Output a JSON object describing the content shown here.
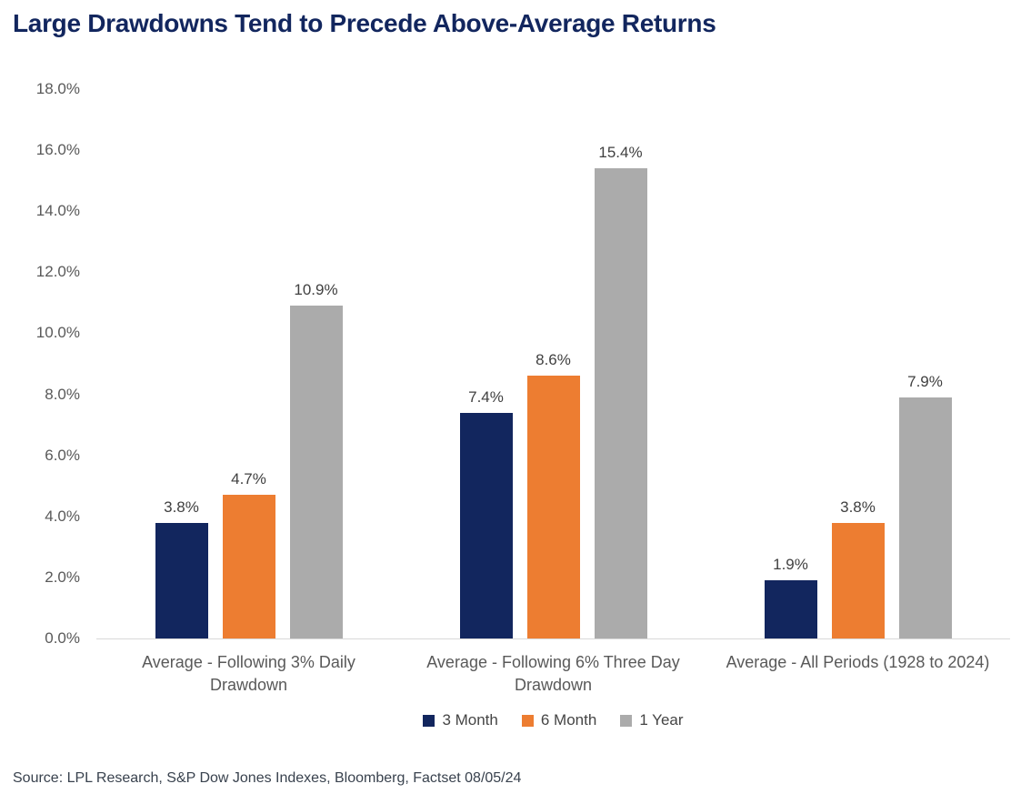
{
  "title": "Large Drawdowns Tend to Precede Above-Average Returns",
  "source": "Source: LPL Research, S&P Dow Jones Indexes, Bloomberg, Factset 08/05/24",
  "colors": {
    "title_text": "#12265E",
    "axis_text": "#595959",
    "data_label": "#404040",
    "legend_text": "#454545",
    "source_text": "#39424E",
    "baseline_line": "#D9D9D9"
  },
  "chart_data": {
    "type": "bar",
    "title": "Large Drawdowns Tend to Precede Above-Average Returns",
    "categories": [
      "Average - Following 3% Daily Drawdown",
      "Average - Following 6% Three Day Drawdown",
      "Average - All Periods (1928 to 2024)"
    ],
    "series": [
      {
        "name": "3 Month",
        "color": "#12265E",
        "values": [
          3.8,
          7.4,
          1.9
        ]
      },
      {
        "name": "6 Month",
        "color": "#ED7D31",
        "values": [
          4.7,
          8.6,
          3.8
        ]
      },
      {
        "name": "1 Year",
        "color": "#ABABAB",
        "values": [
          10.9,
          15.4,
          7.9
        ]
      }
    ],
    "value_suffix": "%",
    "data_labels": true,
    "y_ticks": [
      "18.0%",
      "16.0%",
      "14.0%",
      "12.0%",
      "10.0%",
      "8.0%",
      "6.0%",
      "4.0%",
      "2.0%",
      "0.0%"
    ],
    "ylim": [
      0,
      18
    ],
    "xlabel": "",
    "ylabel": "",
    "grid": false,
    "legend_position": "bottom"
  }
}
